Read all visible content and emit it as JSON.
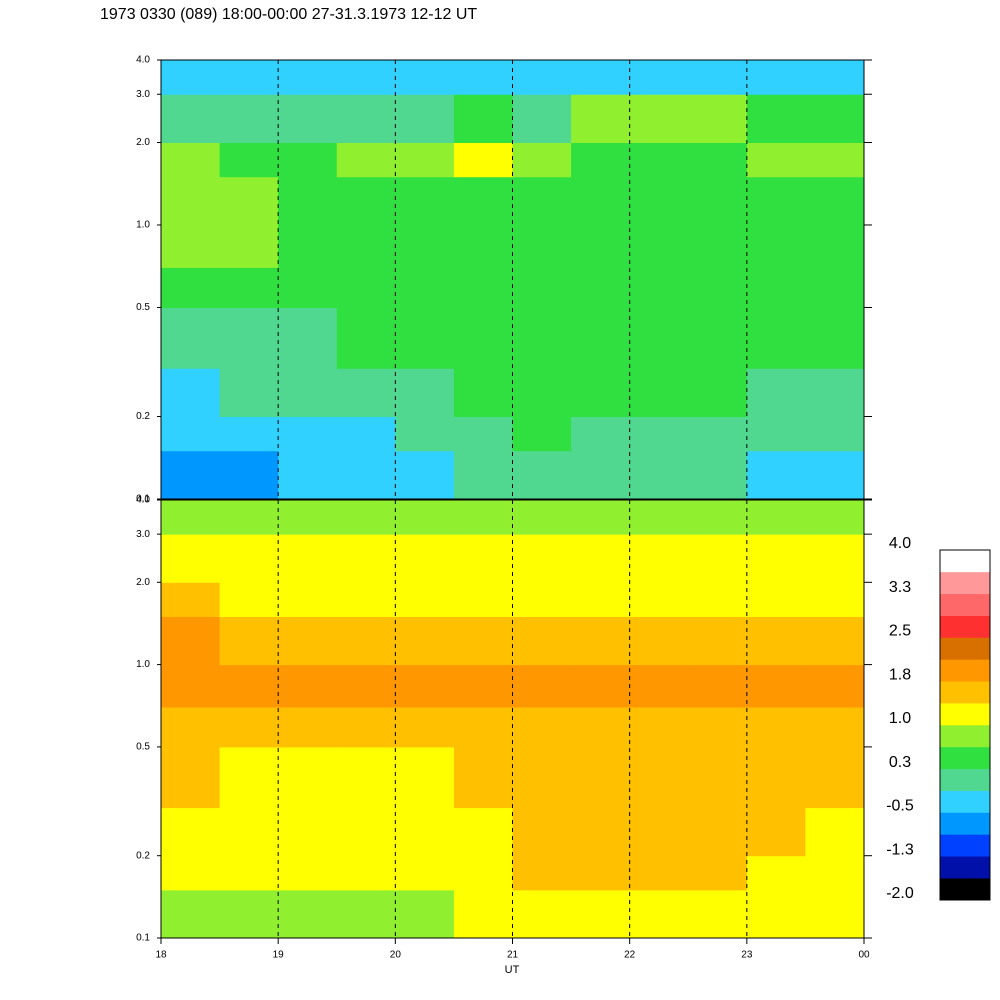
{
  "chart_data": {
    "type": "heatmap",
    "title": "1973 0330 (089) 18:00-00:00 27-31.3.1973  12-12 UT",
    "x_label": "UT",
    "xlim": [
      18,
      24
    ],
    "xticks": [
      18,
      19,
      20,
      21,
      22,
      23,
      {
        "value": 24,
        "label": "00"
      }
    ],
    "x_bins": [
      18,
      18.5,
      19,
      19.5,
      20,
      20.5,
      21,
      21.5,
      22,
      22.5,
      23,
      23.5,
      24
    ],
    "log_y": true,
    "grid": true,
    "panels": [
      {
        "ylim": [
          0.1,
          4
        ],
        "yticks": [
          0.1,
          0.2,
          0.5,
          {
            "value": 1,
            "label": "1.0"
          },
          {
            "value": 2,
            "label": "2.0"
          },
          {
            "value": 3,
            "label": "3.0"
          },
          {
            "value": 4,
            "label": "4.0"
          }
        ],
        "y_bins": [
          0.1,
          0.15,
          0.2,
          0.3,
          0.5,
          0.7,
          1,
          1.5,
          2,
          3,
          4
        ],
        "values": [
          [
            -0.6,
            -0.6,
            -0.5,
            -0.4,
            -0.2,
            0.0,
            0.1,
            0.0,
            -0.1,
            0.0,
            -0.2,
            -0.3
          ],
          [
            -0.4,
            -0.3,
            -0.3,
            -0.2,
            0.0,
            0.2,
            0.3,
            0.2,
            0.1,
            0.2,
            0.0,
            -0.1
          ],
          [
            -0.2,
            -0.1,
            0.0,
            0.1,
            0.2,
            0.3,
            0.4,
            0.3,
            0.3,
            0.3,
            0.2,
            0.1
          ],
          [
            0.1,
            0.2,
            0.2,
            0.3,
            0.3,
            0.4,
            0.5,
            0.4,
            0.4,
            0.4,
            0.3,
            0.3
          ],
          [
            0.4,
            0.4,
            0.3,
            0.3,
            0.3,
            0.4,
            0.4,
            0.3,
            0.3,
            0.4,
            0.3,
            0.3
          ],
          [
            0.8,
            0.9,
            0.5,
            0.4,
            0.4,
            0.4,
            0.3,
            0.3,
            0.4,
            0.3,
            0.3,
            0.3
          ],
          [
            0.9,
            0.7,
            0.5,
            0.5,
            0.5,
            0.6,
            0.5,
            0.4,
            0.4,
            0.4,
            0.4,
            0.5
          ],
          [
            0.8,
            0.6,
            0.5,
            0.9,
            0.8,
            1.0,
            0.9,
            0.6,
            0.6,
            0.6,
            0.8,
            0.9
          ],
          [
            0.2,
            0.1,
            0.0,
            0.2,
            0.2,
            0.3,
            0.2,
            0.8,
            0.9,
            0.7,
            0.3,
            0.3
          ],
          [
            -0.3,
            -0.2,
            -0.4,
            -0.2,
            -0.2,
            -0.3,
            -0.3,
            -0.2,
            -0.3,
            -0.4,
            -0.3,
            -0.3
          ]
        ]
      },
      {
        "ylim": [
          0.1,
          4
        ],
        "yticks": [
          0.1,
          0.2,
          0.5,
          {
            "value": 1,
            "label": "1.0"
          },
          {
            "value": 2,
            "label": "2.0"
          },
          {
            "value": 3,
            "label": "3.0"
          },
          {
            "value": 4,
            "label": "4.0"
          }
        ],
        "y_bins": [
          0.1,
          0.15,
          0.2,
          0.3,
          0.5,
          0.7,
          1,
          1.5,
          2,
          3,
          4
        ],
        "values": [
          [
            0.9,
            0.9,
            0.8,
            0.9,
            0.9,
            1.0,
            1.2,
            1.3,
            1.2,
            1.3,
            1.0,
            1.0
          ],
          [
            1.0,
            1.1,
            1.0,
            1.1,
            1.1,
            1.2,
            1.4,
            1.5,
            1.4,
            1.5,
            1.2,
            1.2
          ],
          [
            1.2,
            1.2,
            1.1,
            1.2,
            1.2,
            1.3,
            1.5,
            1.5,
            1.5,
            1.5,
            1.4,
            1.3
          ],
          [
            1.4,
            1.3,
            1.3,
            1.3,
            1.3,
            1.4,
            1.5,
            1.5,
            1.5,
            1.5,
            1.5,
            1.4
          ],
          [
            1.6,
            1.5,
            1.5,
            1.5,
            1.5,
            1.5,
            1.6,
            1.6,
            1.6,
            1.6,
            1.6,
            1.6
          ],
          [
            2.0,
            2.0,
            1.9,
            1.9,
            1.8,
            1.8,
            1.9,
            1.9,
            1.9,
            1.9,
            1.9,
            1.9
          ],
          [
            1.9,
            1.7,
            1.6,
            1.6,
            1.6,
            1.5,
            1.5,
            1.5,
            1.5,
            1.5,
            1.5,
            1.5
          ],
          [
            1.4,
            1.3,
            1.2,
            1.3,
            1.2,
            1.2,
            1.2,
            1.2,
            1.2,
            1.2,
            1.2,
            1.2
          ],
          [
            1.2,
            1.2,
            1.1,
            1.1,
            1.1,
            1.0,
            1.0,
            1.1,
            1.0,
            1.0,
            1.1,
            1.1
          ],
          [
            0.9,
            0.9,
            0.9,
            0.9,
            0.9,
            0.8,
            0.8,
            0.9,
            0.8,
            0.8,
            0.9,
            0.9
          ]
        ]
      }
    ],
    "colorbar": {
      "lim": [
        -2,
        4
      ],
      "colors": [
        "#000000",
        "#0010a8",
        "#0040ff",
        "#0098ff",
        "#30d0ff",
        "#50d890",
        "#30e040",
        "#90f030",
        "#ffff00",
        "#ffc000",
        "#ff9800",
        "#d87000",
        "#ff3030",
        "#ff6868",
        "#ff9898",
        "#ffffff"
      ],
      "ticks": [
        {
          "value": 4,
          "label": "4.0"
        },
        {
          "value": 3.25,
          "label": "3.3"
        },
        2.5,
        {
          "value": 1.75,
          "label": "1.8"
        },
        {
          "value": 1,
          "label": "1.0"
        },
        {
          "value": 0.25,
          "label": "0.3"
        },
        -0.5,
        {
          "value": -1.25,
          "label": "-1.3"
        },
        {
          "value": -2,
          "label": "-2.0"
        }
      ]
    }
  }
}
